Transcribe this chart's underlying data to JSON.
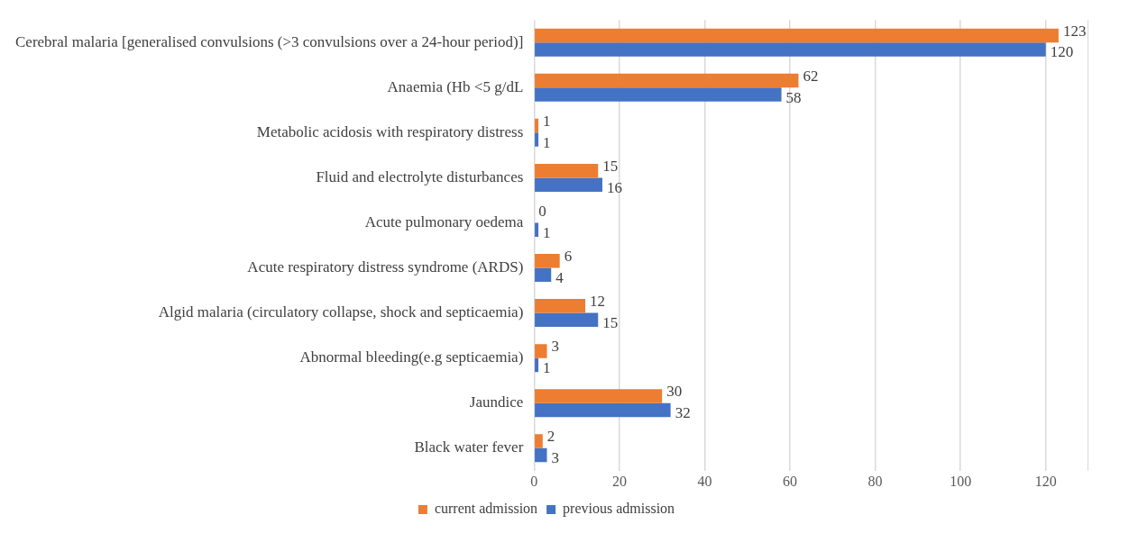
{
  "chart_data": {
    "type": "bar",
    "orientation": "horizontal",
    "categories": [
      "Cerebral malaria [generalised convulsions (>3 convulsions over a 24-hour period)]",
      "Anaemia (Hb <5 g/dL",
      "Metabolic acidosis with respiratory distress",
      "Fluid and electrolyte disturbances",
      "Acute pulmonary oedema",
      "Acute respiratory distress syndrome (ARDS)",
      "Algid malaria (circulatory collapse, shock and septicaemia)",
      "Abnormal bleeding(e.g septicaemia)",
      "Jaundice",
      "Black water fever"
    ],
    "series": [
      {
        "name": "current admission",
        "color": "#ed7d31",
        "values": [
          123,
          62,
          1,
          15,
          0,
          6,
          12,
          3,
          30,
          2
        ]
      },
      {
        "name": "previous admission",
        "color": "#4472c4",
        "values": [
          120,
          58,
          1,
          16,
          1,
          4,
          15,
          1,
          32,
          3
        ]
      }
    ],
    "xlim": [
      0,
      130
    ],
    "xticks": [
      0,
      20,
      40,
      60,
      80,
      100,
      120
    ],
    "grid": "x",
    "legend": "bottom",
    "data_labels": true
  }
}
